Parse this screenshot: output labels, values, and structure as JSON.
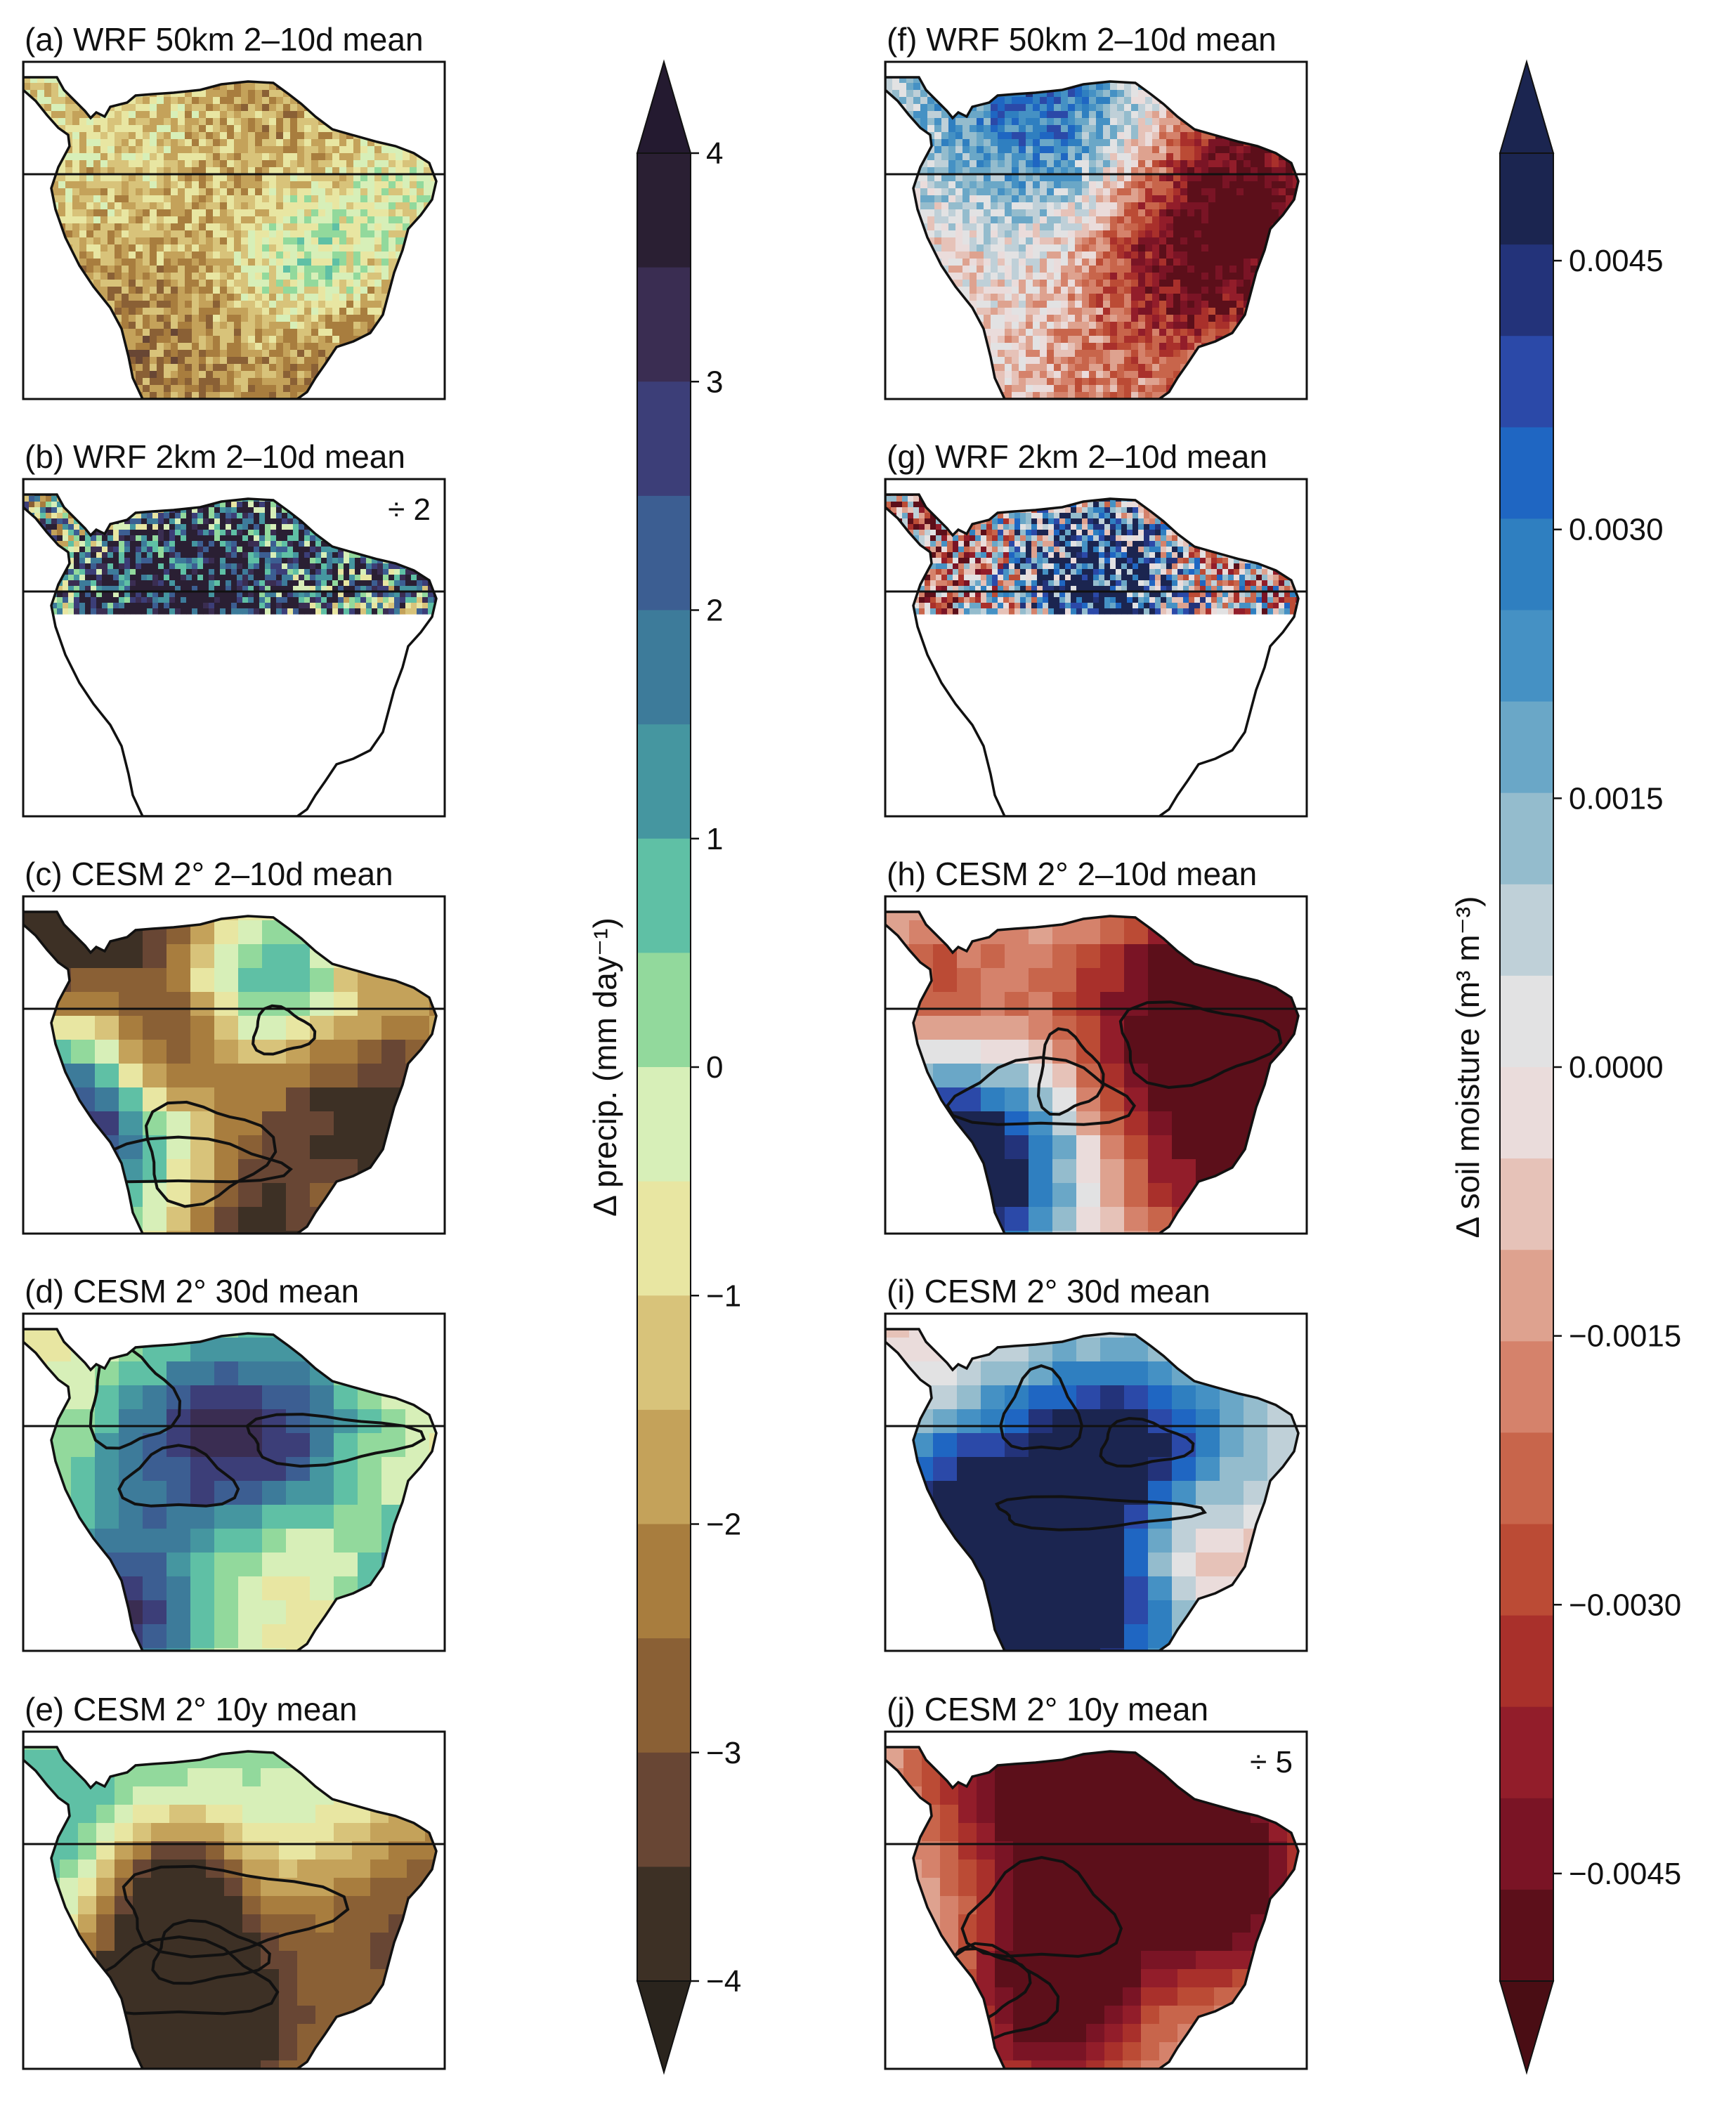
{
  "chart_data": [
    {
      "type": "heatmap",
      "panels": [
        {
          "id": "a",
          "title": "(a) WRF 50km 2–10d mean",
          "scale_note": "",
          "texture": "fine",
          "crop": false,
          "contours": false
        },
        {
          "id": "b",
          "title": "(b) WRF 2km 2–10d mean",
          "scale_note": "÷ 2",
          "texture": "noisy",
          "crop": true,
          "contours": false
        },
        {
          "id": "c",
          "title": "(c) CESM 2° 2–10d mean",
          "scale_note": "",
          "texture": "blocky",
          "crop": false,
          "contours": true
        },
        {
          "id": "d",
          "title": "(d) CESM 2° 30d mean",
          "scale_note": "",
          "texture": "blocky",
          "crop": false,
          "contours": true
        },
        {
          "id": "e",
          "title": "(e) CESM 2° 10y mean",
          "scale_note": "",
          "texture": "smooth",
          "crop": false,
          "contours": true
        }
      ],
      "colorbar": {
        "label": "Δ precip. (mm day⁻¹)",
        "ticks": [
          "4",
          "3",
          "2",
          "1",
          "0",
          "−1",
          "−2",
          "−3",
          "−4"
        ],
        "range": [
          -4,
          4
        ],
        "levels": 16,
        "colors_top_to_bottom": [
          "#2a1f33",
          "#3a2d52",
          "#3c3e78",
          "#3c5e92",
          "#3d7b9a",
          "#4596a0",
          "#5fc0a5",
          "#92d99c",
          "#d7efb8",
          "#e8e6a2",
          "#d8c37a",
          "#c4a25a",
          "#a87d3e",
          "#8a6035",
          "#684634",
          "#3d3025"
        ],
        "extend_top": "#241a30",
        "extend_bottom": "#2a241d"
      }
    },
    {
      "type": "heatmap",
      "panels": [
        {
          "id": "f",
          "title": "(f) WRF 50km 2–10d mean",
          "scale_note": "",
          "texture": "fine",
          "crop": false,
          "contours": false
        },
        {
          "id": "g",
          "title": "(g) WRF 2km 2–10d mean",
          "scale_note": "",
          "texture": "noisy",
          "crop": true,
          "contours": false
        },
        {
          "id": "h",
          "title": "(h) CESM 2° 2–10d mean",
          "scale_note": "",
          "texture": "blocky",
          "crop": false,
          "contours": true
        },
        {
          "id": "i",
          "title": "(i) CESM 2° 30d mean",
          "scale_note": "",
          "texture": "blocky",
          "crop": false,
          "contours": true
        },
        {
          "id": "j",
          "title": "(j) CESM 2° 10y mean",
          "scale_note": "÷ 5",
          "texture": "smooth",
          "crop": false,
          "contours": true
        }
      ],
      "colorbar": {
        "label": "Δ soil moisture (m³ m⁻³)",
        "ticks": [
          "0.0045",
          "0.0030",
          "0.0015",
          "0.0000",
          "−0.0015",
          "−0.0030",
          "−0.0045"
        ],
        "tick_values": [
          0.0045,
          0.003,
          0.0015,
          0.0,
          -0.0015,
          -0.003,
          -0.0045
        ],
        "range": [
          -0.0051,
          0.0051
        ],
        "levels": 20,
        "colors_top_to_bottom": [
          "#1b2550",
          "#23337a",
          "#2b49a8",
          "#1f66c2",
          "#2f7fc0",
          "#4591c4",
          "#6aa7c7",
          "#94bccd",
          "#bfd0d8",
          "#e2e2e3",
          "#eadcdb",
          "#e6c2b8",
          "#dea28f",
          "#d5826b",
          "#c8654b",
          "#bb4b35",
          "#a9302b",
          "#921d2a",
          "#7a1425",
          "#5c0f1a"
        ],
        "extend_top": "#1b2550",
        "extend_bottom": "#4a0d14"
      }
    }
  ]
}
